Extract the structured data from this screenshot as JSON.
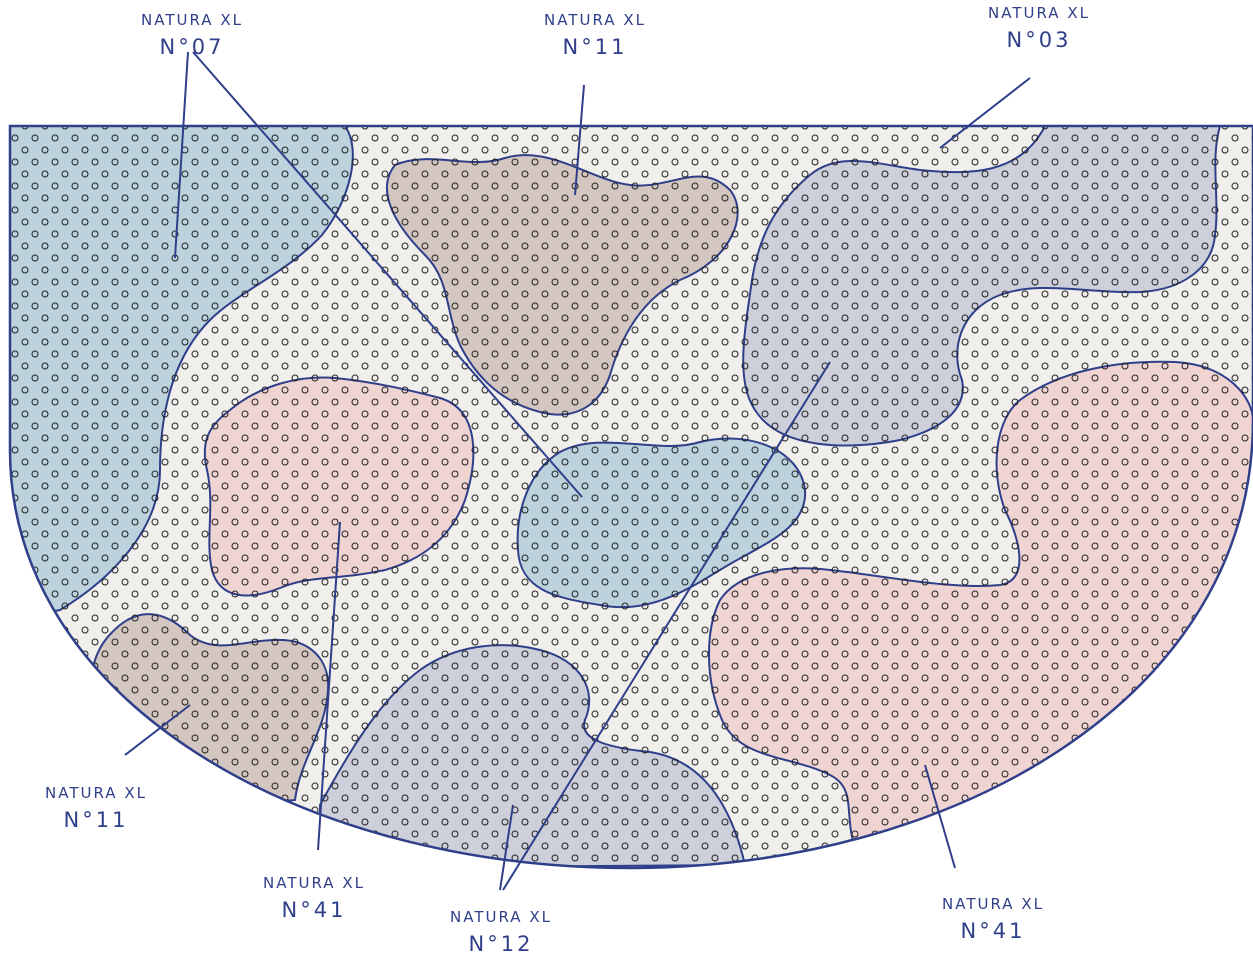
{
  "colors": {
    "outline": "#2f3f8a",
    "base": "#f1efeb",
    "n07": "#bcd2dd",
    "n11": "#d4c7c1",
    "n03": "#cdd0da",
    "n41": "#efd4d2",
    "n12": "#cdd0da",
    "dots": "#222222"
  },
  "callouts": [
    {
      "name": "NATURA XL",
      "code": "N°07"
    },
    {
      "name": "NATURA XL",
      "code": "N°11"
    },
    {
      "name": "NATURA XL",
      "code": "N°03"
    },
    {
      "name": "NATURA XL",
      "code": "N°11"
    },
    {
      "name": "NATURA XL",
      "code": "N°41"
    },
    {
      "name": "NATURA XL",
      "code": "N°12"
    },
    {
      "name": "NATURA XL",
      "code": "N°41"
    }
  ]
}
